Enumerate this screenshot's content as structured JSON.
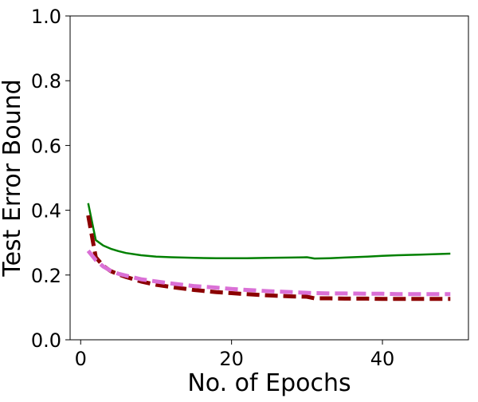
{
  "chart_data": {
    "type": "line",
    "title": "",
    "xlabel": "No. of Epochs",
    "ylabel": "Test Error Bound",
    "xlim": [
      -1.4,
      51.4
    ],
    "ylim": [
      0.0,
      1.0
    ],
    "x_ticks": [
      0,
      20,
      40
    ],
    "x_tick_labels": [
      "0",
      "20",
      "40"
    ],
    "y_ticks": [
      0.0,
      0.2,
      0.4,
      0.6,
      0.8,
      1.0
    ],
    "y_tick_labels": [
      "0.0",
      "0.2",
      "0.4",
      "0.6",
      "0.8",
      "1.0"
    ],
    "grid": false,
    "legend": "none",
    "series": [
      {
        "color": "#008000",
        "style": "solid",
        "x": [
          1,
          2,
          3,
          4,
          5,
          6,
          8,
          10,
          12,
          15,
          18,
          20,
          22,
          25,
          28,
          30,
          31,
          33,
          35,
          38,
          40,
          42,
          45,
          49
        ],
        "y": [
          0.422,
          0.308,
          0.291,
          0.281,
          0.274,
          0.268,
          0.261,
          0.257,
          0.255,
          0.253,
          0.252,
          0.252,
          0.252,
          0.253,
          0.254,
          0.255,
          0.251,
          0.252,
          0.254,
          0.257,
          0.259,
          0.261,
          0.263,
          0.266
        ]
      },
      {
        "color": "#8b0000",
        "style": "dashed",
        "x": [
          1,
          2,
          3,
          4,
          5,
          6,
          8,
          10,
          12,
          15,
          18,
          20,
          22,
          25,
          28,
          30,
          31,
          33,
          35,
          38,
          40,
          42,
          45,
          49
        ],
        "y": [
          0.384,
          0.255,
          0.228,
          0.212,
          0.202,
          0.194,
          0.18,
          0.17,
          0.163,
          0.154,
          0.147,
          0.144,
          0.141,
          0.137,
          0.134,
          0.133,
          0.128,
          0.128,
          0.127,
          0.127,
          0.126,
          0.126,
          0.126,
          0.126
        ]
      },
      {
        "color": "#da70d6",
        "style": "dashed",
        "x": [
          1,
          2,
          3,
          4,
          5,
          6,
          8,
          10,
          12,
          15,
          18,
          20,
          22,
          25,
          28,
          30,
          31,
          33,
          35,
          38,
          40,
          42,
          45,
          49
        ],
        "y": [
          0.275,
          0.246,
          0.226,
          0.213,
          0.204,
          0.198,
          0.187,
          0.18,
          0.174,
          0.166,
          0.161,
          0.157,
          0.154,
          0.15,
          0.147,
          0.145,
          0.144,
          0.143,
          0.143,
          0.142,
          0.142,
          0.141,
          0.141,
          0.141
        ]
      }
    ]
  }
}
